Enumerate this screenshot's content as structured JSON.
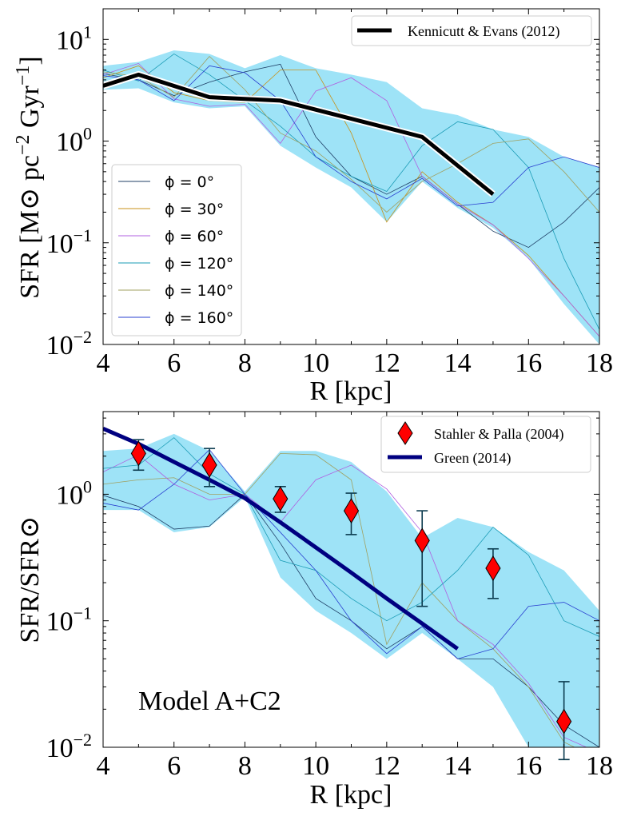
{
  "chart_data": [
    {
      "type": "line",
      "ylog": true,
      "xlabel": "R [kpc]",
      "ylabel": "SFR [M⊙ pc⁻² Gyr⁻¹]",
      "xlim": [
        4,
        18
      ],
      "ylim": [
        0.01,
        20
      ],
      "x_ticks": [
        4,
        6,
        8,
        10,
        12,
        14,
        16,
        18
      ],
      "y_ticks": [
        {
          "value": 0.01,
          "label": "10",
          "exp": "−2"
        },
        {
          "value": 0.1,
          "label": "10",
          "exp": "−1"
        },
        {
          "value": 1,
          "label": "10",
          "exp": "0"
        },
        {
          "value": 10,
          "label": "10",
          "exp": "1"
        }
      ],
      "colors": {
        "band": "#9ee3f7",
        "model": "#000000",
        "phi_0": "#1f3f66",
        "phi_30": "#c8921a",
        "phi_60": "#b060e0",
        "phi_120": "#1a9bb5",
        "phi_140": "#a0a060",
        "phi_160": "#2a40d0"
      },
      "band": {
        "x": [
          4,
          5,
          6,
          7,
          8,
          9,
          10,
          11,
          12,
          13,
          14,
          15,
          16,
          17,
          18
        ],
        "upper": [
          5.5,
          6.0,
          7.8,
          7.2,
          5.2,
          7.0,
          5.2,
          4.5,
          3.8,
          2.1,
          1.8,
          1.3,
          1.1,
          0.7,
          0.55
        ],
        "lower": [
          3.2,
          3.3,
          2.4,
          2.1,
          2.2,
          0.9,
          0.55,
          0.35,
          0.16,
          0.4,
          0.22,
          0.14,
          0.07,
          0.025,
          0.01
        ]
      },
      "series": [
        {
          "name": "ϕ = 0°",
          "key": "phi_0",
          "values": [
            4.6,
            4.0,
            2.8,
            3.8,
            4.8,
            5.7,
            1.1,
            0.45,
            0.3,
            0.45,
            0.24,
            0.13,
            0.09,
            0.16,
            0.35
          ]
        },
        {
          "name": "ϕ = 30°",
          "key": "phi_30",
          "values": [
            4.2,
            5.5,
            3.0,
            2.5,
            2.4,
            5.0,
            5.0,
            1.2,
            0.16,
            0.5,
            0.25,
            0.15,
            0.075,
            0.03,
            0.012
          ]
        },
        {
          "name": "ϕ = 60°",
          "key": "phi_60",
          "values": [
            4.5,
            5.8,
            2.6,
            2.2,
            2.3,
            0.95,
            3.1,
            4.2,
            2.5,
            0.45,
            0.24,
            0.15,
            0.07,
            0.03,
            0.012
          ]
        },
        {
          "name": "ϕ = 120°",
          "key": "phi_120",
          "values": [
            5.0,
            3.9,
            7.2,
            4.5,
            2.5,
            1.4,
            0.7,
            0.45,
            0.32,
            0.9,
            1.55,
            1.3,
            0.55,
            0.07,
            0.014
          ]
        },
        {
          "name": "ϕ = 140°",
          "key": "phi_140",
          "values": [
            4.8,
            4.3,
            2.7,
            6.8,
            3.2,
            1.2,
            0.8,
            0.42,
            0.2,
            0.4,
            0.6,
            0.95,
            1.05,
            0.5,
            0.2
          ]
        },
        {
          "name": "ϕ = 160°",
          "key": "phi_160",
          "values": [
            4.4,
            4.0,
            2.5,
            5.5,
            4.7,
            2.5,
            0.7,
            0.4,
            0.27,
            0.43,
            0.23,
            0.25,
            0.55,
            0.7,
            0.55
          ]
        }
      ],
      "model": {
        "name": "Kennicutt & Evans (2012)",
        "x": [
          4,
          5,
          7,
          9,
          13,
          15
        ],
        "values": [
          3.5,
          4.5,
          2.7,
          2.5,
          1.1,
          0.3
        ]
      },
      "legend_placement": "upper-right and center-left"
    },
    {
      "type": "line",
      "ylog": true,
      "xlabel": "R [kpc]",
      "ylabel": "SFR/SFR⊙",
      "xlim": [
        4,
        18
      ],
      "ylim": [
        0.01,
        4.5
      ],
      "x_ticks": [
        4,
        6,
        8,
        10,
        12,
        14,
        16,
        18
      ],
      "y_ticks": [
        {
          "value": 0.01,
          "label": "10",
          "exp": "−2"
        },
        {
          "value": 0.1,
          "label": "10",
          "exp": "−1"
        },
        {
          "value": 1,
          "label": "10",
          "exp": "0"
        }
      ],
      "annotation": "Model A+C2",
      "colors": {
        "band": "#9ee3f7",
        "model": "#000080",
        "points": "#ff0000",
        "errorbar": "#0b3b4f"
      },
      "band": {
        "x": [
          4,
          5,
          6,
          7,
          8,
          9,
          10,
          11,
          12,
          13,
          14,
          15,
          16,
          17,
          18
        ],
        "upper": [
          2.2,
          2.3,
          3.0,
          2.2,
          1.05,
          2.2,
          2.2,
          1.8,
          1.05,
          0.45,
          0.65,
          0.55,
          0.35,
          0.25,
          0.12
        ],
        "lower": [
          0.75,
          0.75,
          0.5,
          0.55,
          0.95,
          0.22,
          0.12,
          0.08,
          0.05,
          0.08,
          0.05,
          0.03,
          0.01,
          0.008,
          0.008
        ]
      },
      "series": [
        {
          "key": "s1",
          "color": "#1f3f66",
          "values": [
            0.98,
            0.8,
            0.53,
            0.56,
            1.0,
            0.41,
            0.15,
            0.1,
            0.06,
            0.09,
            0.05,
            0.05,
            0.03,
            0.015,
            0.01
          ]
        },
        {
          "key": "s2",
          "color": "#a0a060",
          "values": [
            1.2,
            1.3,
            1.35,
            1.0,
            1.0,
            2.1,
            2.05,
            1.3,
            0.065,
            0.2,
            0.1,
            0.06,
            0.03,
            0.011,
            0.008
          ]
        },
        {
          "key": "s3",
          "color": "#b060e0",
          "values": [
            1.5,
            2.05,
            1.2,
            0.9,
            1.0,
            0.6,
            1.3,
            1.7,
            1.1,
            0.5,
            0.1,
            0.065,
            0.032,
            0.012,
            0.009
          ]
        },
        {
          "key": "s4",
          "color": "#1a9bb5",
          "values": [
            1.6,
            1.7,
            2.8,
            1.45,
            1.0,
            0.3,
            0.25,
            0.15,
            0.1,
            0.14,
            0.25,
            0.55,
            0.33,
            0.1,
            0.075
          ]
        },
        {
          "key": "s5",
          "color": "#2a40d0",
          "values": [
            0.85,
            0.75,
            1.2,
            2.25,
            1.0,
            0.5,
            0.25,
            0.1,
            0.055,
            0.09,
            0.05,
            0.06,
            0.13,
            0.14,
            0.1
          ]
        }
      ],
      "model": {
        "name": "Green (2014)",
        "x": [
          4,
          5,
          6,
          7,
          8,
          9,
          10,
          11,
          12,
          13,
          14
        ],
        "values": [
          3.3,
          2.5,
          1.8,
          1.3,
          0.93,
          0.6,
          0.38,
          0.24,
          0.15,
          0.095,
          0.06
        ]
      },
      "points": {
        "name": "Stahler & Palla (2004)",
        "x": [
          5,
          7,
          9,
          11,
          13,
          15,
          17
        ],
        "y": [
          2.1,
          1.7,
          0.92,
          0.74,
          0.43,
          0.26,
          0.016
        ],
        "yerr_low": [
          1.55,
          1.15,
          0.72,
          0.48,
          0.13,
          0.15,
          0.008
        ],
        "yerr_high": [
          2.7,
          2.3,
          1.15,
          1.02,
          0.74,
          0.37,
          0.033
        ]
      },
      "legend_placement": "top-right"
    }
  ]
}
